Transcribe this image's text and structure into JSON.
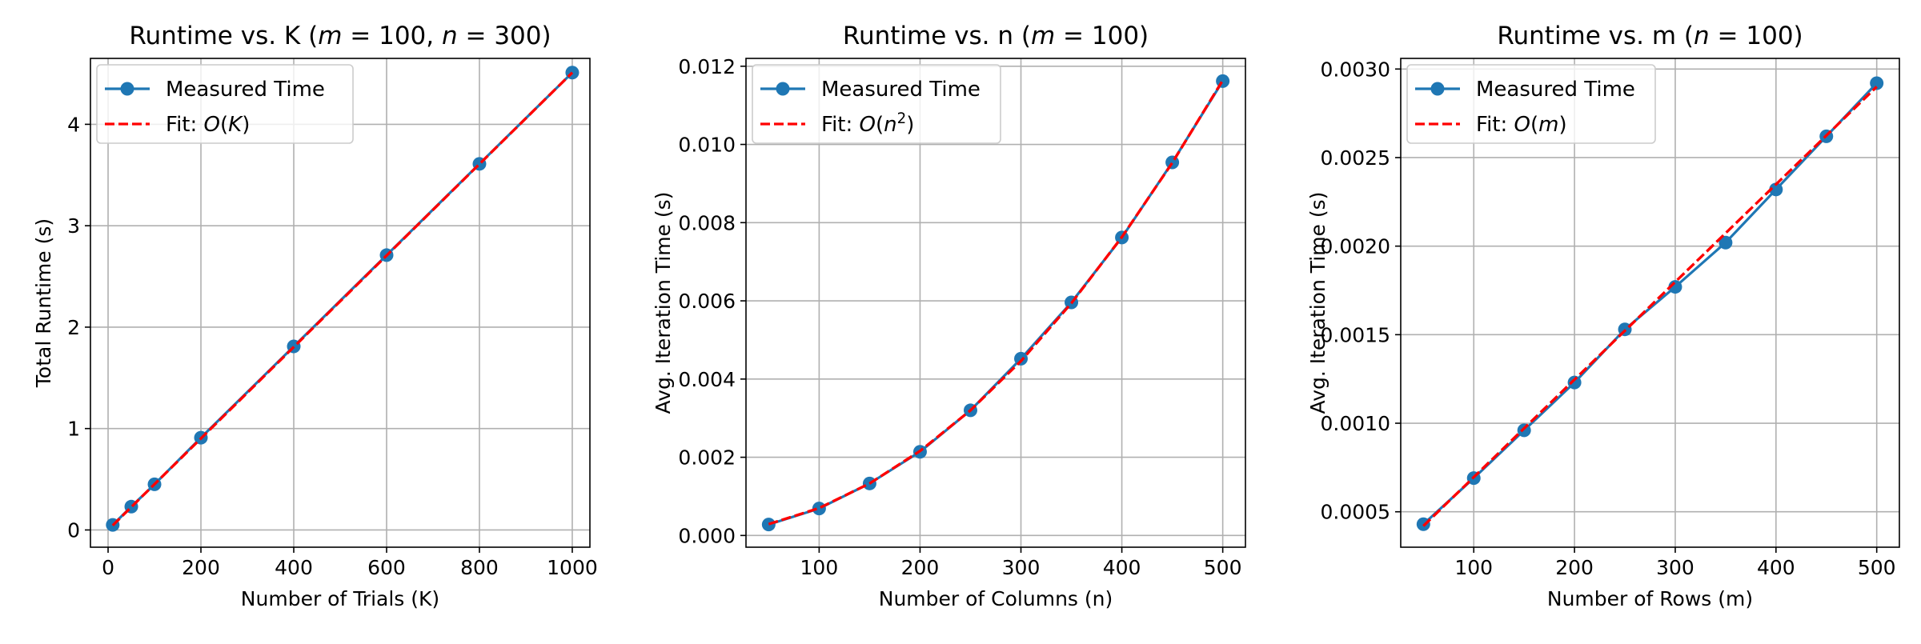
{
  "figure": {
    "background": "#ffffff"
  },
  "chart_data": [
    {
      "type": "line",
      "title": "Runtime vs. K (m = 100, n = 300)",
      "title_parts": [
        {
          "t": "Runtime vs. K (",
          "i": false
        },
        {
          "t": "m",
          "i": true
        },
        {
          "t": " = 100, ",
          "i": false
        },
        {
          "t": "n",
          "i": true
        },
        {
          "t": " = 300)",
          "i": false
        }
      ],
      "xlabel": "Number of Trials (K)",
      "ylabel": "Total Runtime (s)",
      "xlim": [
        -38,
        1038
      ],
      "ylim": [
        -0.17,
        4.65
      ],
      "xticks": [
        0,
        200,
        400,
        600,
        800,
        1000
      ],
      "xtick_labels": [
        "0",
        "200",
        "400",
        "600",
        "800",
        "1000"
      ],
      "yticks": [
        0,
        1,
        2,
        3,
        4
      ],
      "ytick_labels": [
        "0",
        "1",
        "2",
        "3",
        "4"
      ],
      "grid": true,
      "legend_position": "upper-left",
      "series": [
        {
          "name": "Measured Time",
          "color": "#1f77b4",
          "style": "solid-with-circle-markers",
          "x": [
            10,
            50,
            100,
            200,
            400,
            600,
            800,
            1000
          ],
          "y": [
            0.05,
            0.23,
            0.45,
            0.91,
            1.81,
            2.71,
            3.61,
            4.51
          ]
        },
        {
          "name": "Fit: O(K)",
          "name_parts": [
            {
              "t": "Fit: ",
              "i": false
            },
            {
              "t": "O",
              "i": true
            },
            {
              "t": "(",
              "i": false
            },
            {
              "t": "K",
              "i": true
            },
            {
              "t": ")",
              "i": false
            }
          ],
          "color": "#ff0000",
          "style": "dashed",
          "x": [
            10,
            50,
            100,
            200,
            400,
            600,
            800,
            1000
          ],
          "y": [
            0.045,
            0.226,
            0.451,
            0.902,
            1.804,
            2.706,
            3.608,
            4.51
          ]
        }
      ]
    },
    {
      "type": "line",
      "title": "Runtime vs. n (m = 100)",
      "title_parts": [
        {
          "t": "Runtime vs. n (",
          "i": false
        },
        {
          "t": "m",
          "i": true
        },
        {
          "t": " = 100)",
          "i": false
        }
      ],
      "xlabel": "Number of Columns (n)",
      "ylabel": "Avg. Iteration Time (s)",
      "xlim": [
        27.5,
        522.5
      ],
      "ylim": [
        -0.0003,
        0.0122
      ],
      "xticks": [
        100,
        200,
        300,
        400,
        500
      ],
      "xtick_labels": [
        "100",
        "200",
        "300",
        "400",
        "500"
      ],
      "yticks": [
        0,
        0.002,
        0.004,
        0.006,
        0.008,
        0.01,
        0.012
      ],
      "ytick_labels": [
        "0.000",
        "0.002",
        "0.004",
        "0.006",
        "0.008",
        "0.010",
        "0.012"
      ],
      "grid": true,
      "legend_position": "upper-left",
      "series": [
        {
          "name": "Measured Time",
          "color": "#1f77b4",
          "style": "solid-with-circle-markers",
          "x": [
            50,
            100,
            150,
            200,
            250,
            300,
            350,
            400,
            450,
            500
          ],
          "y": [
            0.00028,
            0.00069,
            0.00133,
            0.00214,
            0.0032,
            0.00452,
            0.00596,
            0.00762,
            0.00954,
            0.01162
          ]
        },
        {
          "name": "Fit: O(n²)",
          "name_parts": [
            {
              "t": "Fit: ",
              "i": false
            },
            {
              "t": "O",
              "i": true
            },
            {
              "t": "(",
              "i": false
            },
            {
              "t": "n",
              "i": true
            },
            {
              "t": "2",
              "i": false,
              "sup": true
            },
            {
              "t": ")",
              "i": false
            }
          ],
          "color": "#ff0000",
          "style": "dashed",
          "x": [
            50,
            100,
            150,
            200,
            250,
            300,
            350,
            400,
            450,
            500
          ],
          "y": [
            0.00029,
            0.0007,
            0.00133,
            0.00216,
            0.0032,
            0.00446,
            0.00594,
            0.00763,
            0.00953,
            0.01164
          ]
        }
      ]
    },
    {
      "type": "line",
      "title": "Runtime vs. m (n = 100)",
      "title_parts": [
        {
          "t": "Runtime vs. m (",
          "i": false
        },
        {
          "t": "n",
          "i": true
        },
        {
          "t": " = 100)",
          "i": false
        }
      ],
      "xlabel": "Number of Rows (m)",
      "ylabel": "Avg. Iteration Time (s)",
      "xlim": [
        27.5,
        522.5
      ],
      "ylim": [
        0.0003,
        0.00306
      ],
      "xticks": [
        100,
        200,
        300,
        400,
        500
      ],
      "xtick_labels": [
        "100",
        "200",
        "300",
        "400",
        "500"
      ],
      "yticks": [
        0.0005,
        0.001,
        0.0015,
        0.002,
        0.0025,
        0.003
      ],
      "ytick_labels": [
        "0.0005",
        "0.0010",
        "0.0015",
        "0.0020",
        "0.0025",
        "0.0030"
      ],
      "grid": true,
      "legend_position": "upper-left",
      "series": [
        {
          "name": "Measured Time",
          "color": "#1f77b4",
          "style": "solid-with-circle-markers",
          "x": [
            50,
            100,
            150,
            200,
            250,
            300,
            350,
            400,
            450,
            500
          ],
          "y": [
            0.00043,
            0.00069,
            0.00096,
            0.00123,
            0.00153,
            0.00177,
            0.00202,
            0.00232,
            0.00262,
            0.00292
          ]
        },
        {
          "name": "Fit: O(m)",
          "name_parts": [
            {
              "t": "Fit: ",
              "i": false
            },
            {
              "t": "O",
              "i": true
            },
            {
              "t": "(",
              "i": false
            },
            {
              "t": "m",
              "i": true
            },
            {
              "t": ")",
              "i": false
            }
          ],
          "color": "#ff0000",
          "style": "dashed",
          "x": [
            50,
            500
          ],
          "y": [
            0.00042,
            0.0029
          ]
        }
      ]
    }
  ]
}
